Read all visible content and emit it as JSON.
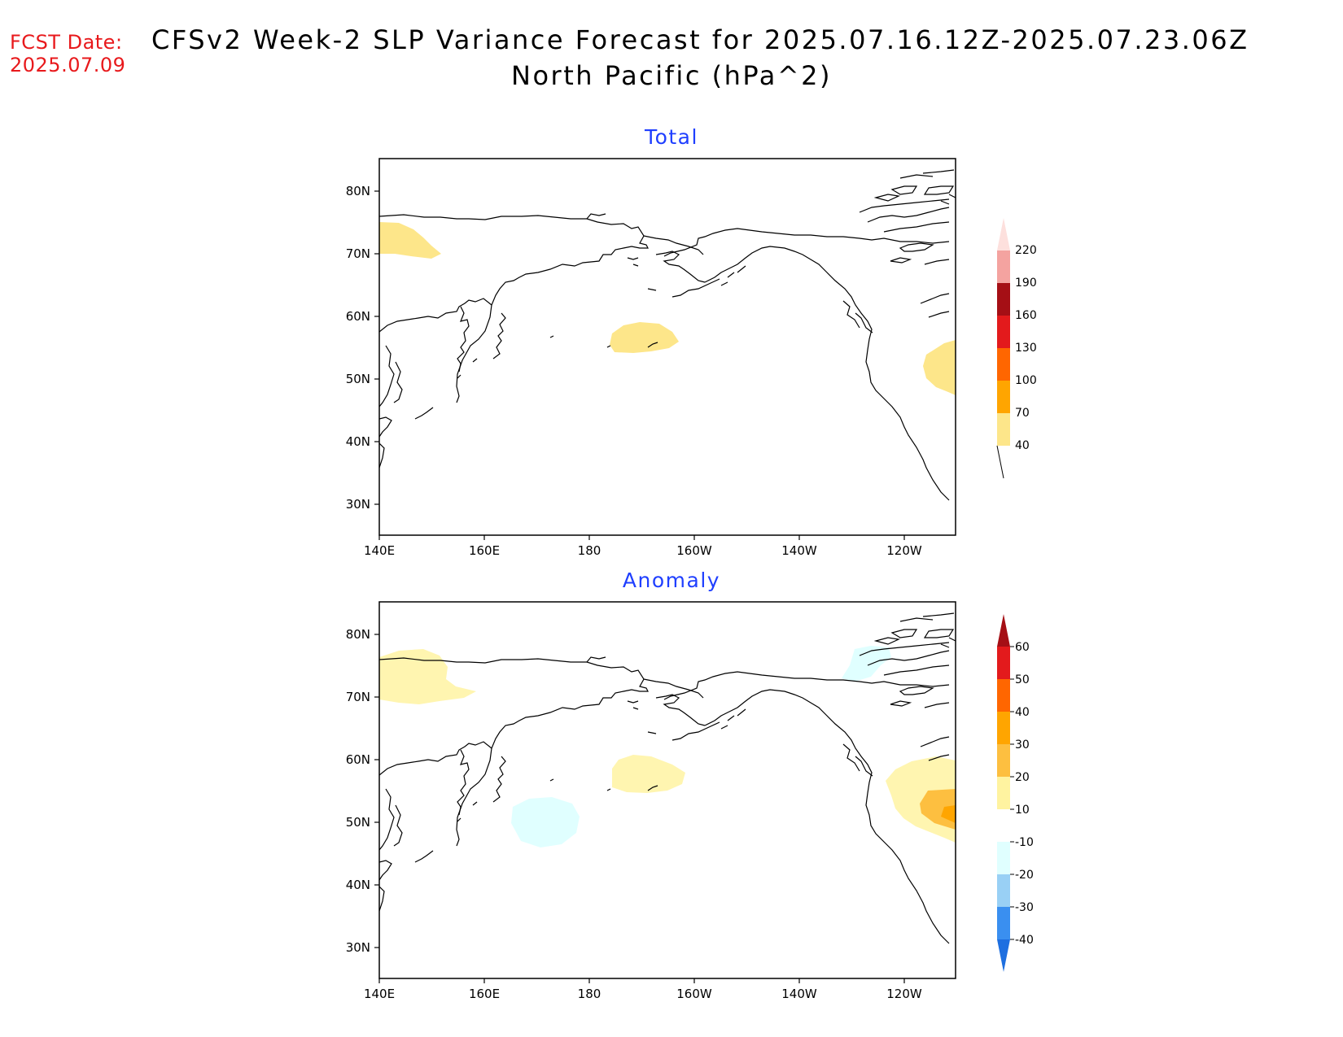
{
  "header": {
    "fcst_label_line1": "FCST Date:",
    "fcst_label_line2": "2025.07.09",
    "title_line1": "CFSv2 Week-2 SLP Variance Forecast for 2025.07.16.12Z-2025.07.23.06Z",
    "title_line2": "North Pacific (hPa^2)"
  },
  "colors": {
    "fcst": "#e8191c",
    "panel_title": "#1f3fff",
    "coast": "#000000"
  },
  "map_axes": {
    "lon_ticks": [
      "140E",
      "160E",
      "180",
      "160W",
      "140W",
      "120W"
    ],
    "lat_ticks": [
      "80N",
      "70N",
      "60N",
      "50N",
      "40N",
      "30N"
    ],
    "lon_range_deg_east": [
      140,
      250
    ],
    "lat_range_deg": [
      25,
      85
    ]
  },
  "panels": [
    {
      "title": "Total",
      "colorbar": {
        "levels": [
          "220",
          "190",
          "160",
          "130",
          "100",
          "70",
          "40"
        ],
        "colors": [
          "#fde0dd",
          "#f4a3a0",
          "#a50f15",
          "#e31a1c",
          "#ff6600",
          "#ffa500",
          "#fde68a"
        ]
      }
    },
    {
      "title": "Anomaly",
      "colorbar": {
        "levels": [
          "60",
          "50",
          "40",
          "30",
          "20",
          "10",
          "-10",
          "-20",
          "-30",
          "-40"
        ],
        "colors": [
          "#a50f15",
          "#e31a1c",
          "#ff6600",
          "#ffa500",
          "#fdbf40",
          "#fff3a0",
          "#ffffff",
          "#e0ffff",
          "#99d0f5",
          "#3a8ff0",
          "#1e6fe0"
        ]
      }
    }
  ]
}
